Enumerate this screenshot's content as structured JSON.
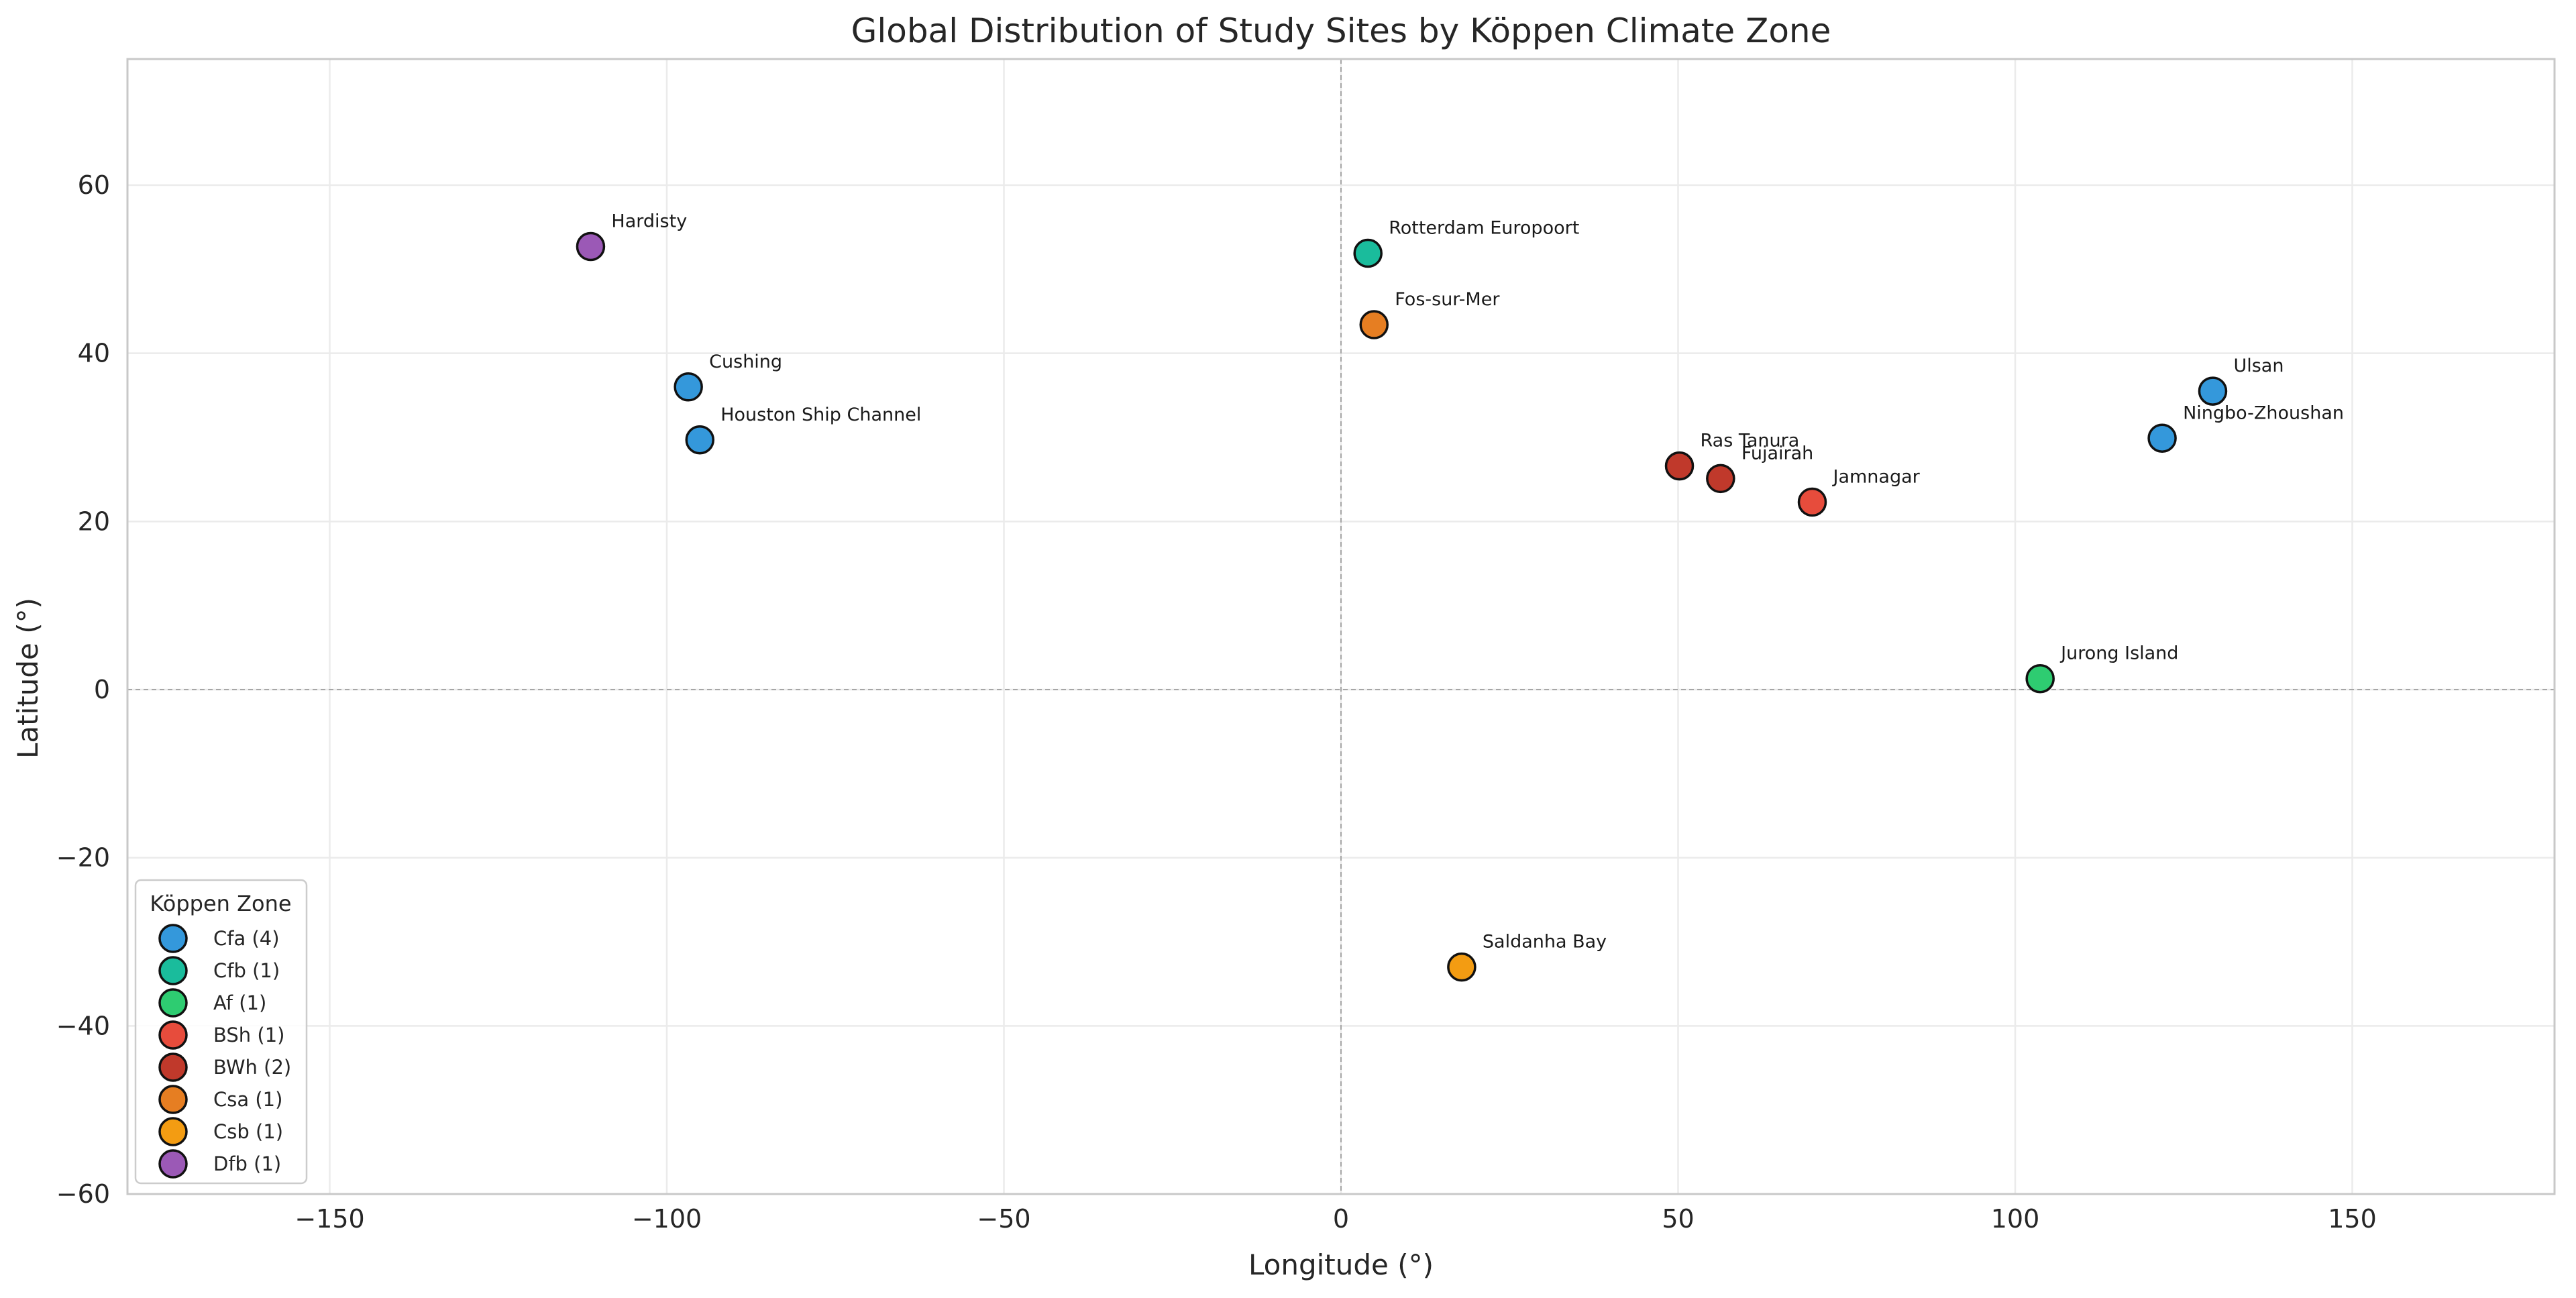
{
  "chart_data": {
    "type": "scatter",
    "title": "Global Distribution of Study Sites by Köppen Climate Zone",
    "xlabel": "Longitude (°)",
    "ylabel": "Latitude (°)",
    "xlim": [
      -180,
      180
    ],
    "ylim": [
      -60,
      75
    ],
    "xticks": [
      -150,
      -100,
      -50,
      0,
      50,
      100,
      150
    ],
    "yticks": [
      -60,
      -40,
      -20,
      0,
      20,
      40,
      60
    ],
    "xtick_labels": [
      "−150",
      "−100",
      "−50",
      "0",
      "50",
      "100",
      "150"
    ],
    "ytick_labels": [
      "−60",
      "−40",
      "−20",
      "0",
      "20",
      "40",
      "60"
    ],
    "grid": true,
    "reference_lines": {
      "x": 0,
      "y": 0
    },
    "legend": {
      "title": "Köppen Zone",
      "location": "lower-left",
      "entries": [
        {
          "zone": "Cfa",
          "label": "Cfa (4)",
          "color": "#3498db"
        },
        {
          "zone": "Cfb",
          "label": "Cfb (1)",
          "color": "#1abc9c"
        },
        {
          "zone": "Af",
          "label": "Af (1)",
          "color": "#2ecc71"
        },
        {
          "zone": "BSh",
          "label": "BSh (1)",
          "color": "#e74c3c"
        },
        {
          "zone": "BWh",
          "label": "BWh (2)",
          "color": "#c0392b"
        },
        {
          "zone": "Csa",
          "label": "Csa (1)",
          "color": "#e67e22"
        },
        {
          "zone": "Csb",
          "label": "Csb (1)",
          "color": "#f39c12"
        },
        {
          "zone": "Dfb",
          "label": "Dfb (1)",
          "color": "#9b59b6"
        }
      ]
    },
    "points": [
      {
        "name": "Hardisty",
        "zone": "Dfb",
        "lon": -111.3,
        "lat": 52.7
      },
      {
        "name": "Cushing",
        "zone": "Cfa",
        "lon": -96.8,
        "lat": 36.0
      },
      {
        "name": "Houston Ship Channel",
        "zone": "Cfa",
        "lon": -95.1,
        "lat": 29.7
      },
      {
        "name": "Rotterdam Europoort",
        "zone": "Cfb",
        "lon": 4.0,
        "lat": 51.9
      },
      {
        "name": "Fos-sur-Mer",
        "zone": "Csa",
        "lon": 4.9,
        "lat": 43.4
      },
      {
        "name": "Ras Tanura",
        "zone": "BWh",
        "lon": 50.2,
        "lat": 26.6
      },
      {
        "name": "Fujairah",
        "zone": "BWh",
        "lon": 56.3,
        "lat": 25.1
      },
      {
        "name": "Jamnagar",
        "zone": "BSh",
        "lon": 69.9,
        "lat": 22.3
      },
      {
        "name": "Ulsan",
        "zone": "Cfa",
        "lon": 129.3,
        "lat": 35.5
      },
      {
        "name": "Ningbo-Zhoushan",
        "zone": "Cfa",
        "lon": 121.8,
        "lat": 29.9
      },
      {
        "name": "Jurong Island",
        "zone": "Af",
        "lon": 103.7,
        "lat": 1.3
      },
      {
        "name": "Saldanha Bay",
        "zone": "Csb",
        "lon": 17.9,
        "lat": -33.0
      }
    ]
  }
}
